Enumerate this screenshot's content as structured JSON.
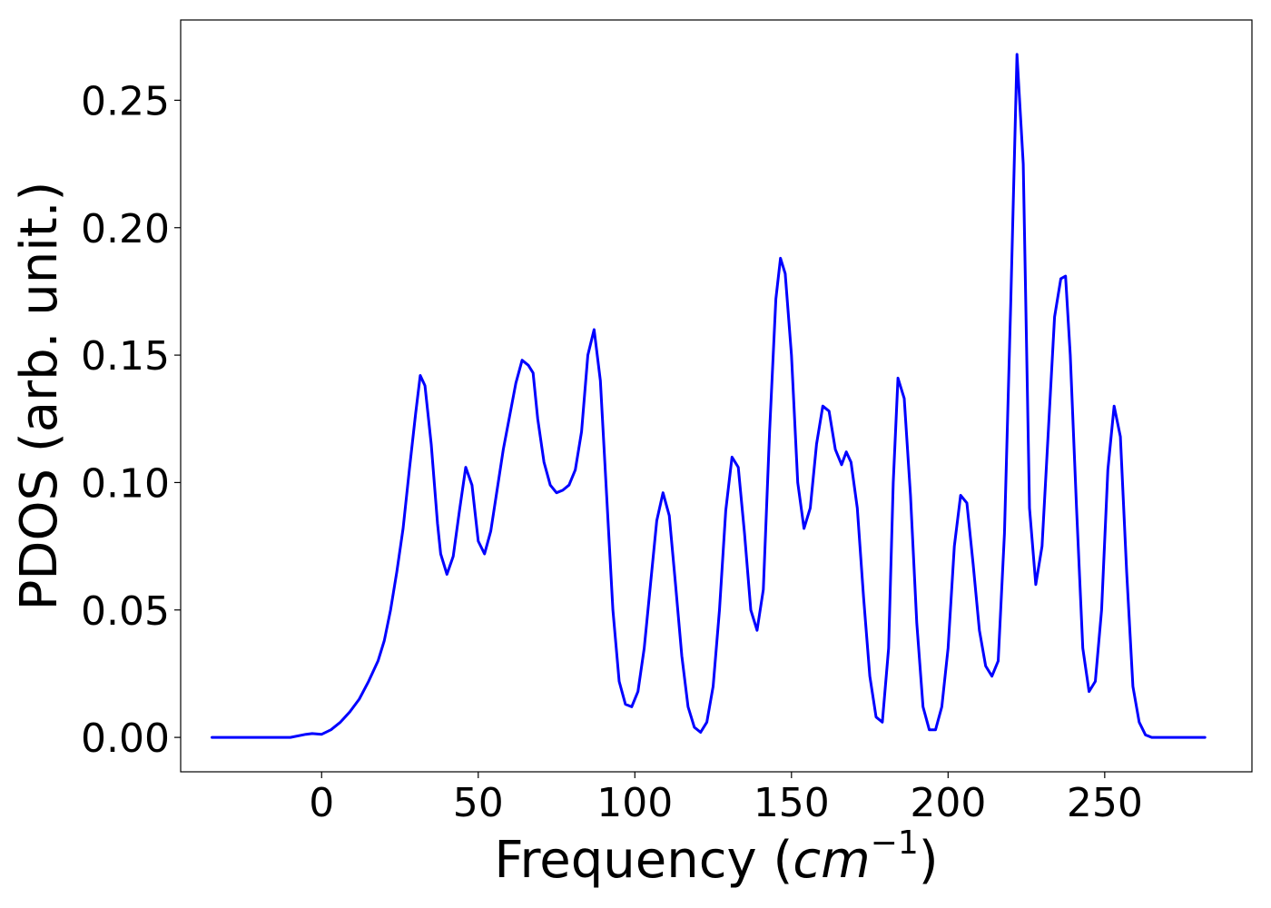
{
  "chart_data": {
    "type": "line",
    "title": "",
    "xlabel": "Frequency",
    "xlabel_math": "cm",
    "xlabel_exp": "−1",
    "ylabel": "PDOS (arb. unit.)",
    "xlim": [
      -45,
      297
    ],
    "ylim": [
      -0.0135,
      0.2815
    ],
    "xticks": [
      0,
      50,
      100,
      150,
      200,
      250
    ],
    "xtick_labels": [
      "0",
      "50",
      "100",
      "150",
      "200",
      "250"
    ],
    "yticks": [
      0.0,
      0.05,
      0.1,
      0.15,
      0.2,
      0.25
    ],
    "ytick_labels": [
      "0.00",
      "0.05",
      "0.10",
      "0.15",
      "0.20",
      "0.25"
    ],
    "grid": false,
    "line_color": "#0000ff",
    "series": [
      {
        "x": [
          -35,
          -20,
          -10,
          -5,
          -3,
          0,
          3,
          6,
          9,
          12,
          15,
          18,
          20,
          22,
          24,
          26,
          28,
          30,
          31.5,
          33,
          35,
          37,
          38,
          40,
          42,
          44,
          46,
          48,
          50,
          52,
          54,
          56,
          58,
          60,
          62,
          64,
          66,
          67.5,
          69,
          71,
          73,
          75,
          77,
          79,
          81,
          83,
          85,
          87,
          89,
          91,
          93,
          95,
          97,
          99,
          101,
          103,
          105,
          107,
          109,
          111,
          113,
          115,
          117,
          119,
          121,
          123,
          125,
          127,
          129,
          131,
          133,
          135,
          137,
          139,
          141,
          143,
          145,
          146.5,
          148,
          150,
          152,
          154,
          156,
          158,
          160,
          162,
          164,
          166,
          167.5,
          169,
          171,
          173,
          175,
          177,
          179,
          181,
          182.5,
          184,
          186,
          188,
          190,
          192,
          194,
          196,
          198,
          200,
          202,
          204,
          206,
          208,
          210,
          212,
          214,
          216,
          218,
          220,
          222,
          224,
          226,
          228,
          230,
          232,
          234,
          236,
          237.5,
          239,
          241,
          243,
          245,
          247,
          249,
          251,
          253,
          255,
          257,
          259,
          261,
          263,
          265,
          268,
          272,
          282
        ],
        "y": [
          0,
          0,
          0,
          0.0012,
          0.0015,
          0.0012,
          0.003,
          0.006,
          0.01,
          0.015,
          0.022,
          0.03,
          0.038,
          0.05,
          0.065,
          0.082,
          0.105,
          0.127,
          0.142,
          0.138,
          0.115,
          0.084,
          0.072,
          0.064,
          0.071,
          0.089,
          0.106,
          0.099,
          0.077,
          0.072,
          0.081,
          0.097,
          0.113,
          0.126,
          0.139,
          0.148,
          0.146,
          0.143,
          0.125,
          0.108,
          0.099,
          0.096,
          0.097,
          0.099,
          0.105,
          0.12,
          0.15,
          0.16,
          0.14,
          0.095,
          0.05,
          0.022,
          0.013,
          0.012,
          0.018,
          0.035,
          0.06,
          0.085,
          0.096,
          0.087,
          0.06,
          0.032,
          0.012,
          0.004,
          0.002,
          0.006,
          0.02,
          0.05,
          0.089,
          0.11,
          0.106,
          0.08,
          0.05,
          0.042,
          0.058,
          0.12,
          0.172,
          0.188,
          0.182,
          0.15,
          0.1,
          0.082,
          0.09,
          0.115,
          0.13,
          0.128,
          0.113,
          0.107,
          0.112,
          0.108,
          0.09,
          0.055,
          0.024,
          0.008,
          0.006,
          0.035,
          0.1,
          0.141,
          0.133,
          0.095,
          0.045,
          0.012,
          0.003,
          0.003,
          0.012,
          0.035,
          0.075,
          0.095,
          0.092,
          0.068,
          0.042,
          0.028,
          0.024,
          0.03,
          0.08,
          0.17,
          0.268,
          0.225,
          0.09,
          0.06,
          0.075,
          0.12,
          0.165,
          0.18,
          0.181,
          0.15,
          0.09,
          0.035,
          0.018,
          0.022,
          0.05,
          0.105,
          0.13,
          0.118,
          0.065,
          0.02,
          0.006,
          0.001,
          0,
          0,
          0,
          0
        ]
      }
    ]
  }
}
